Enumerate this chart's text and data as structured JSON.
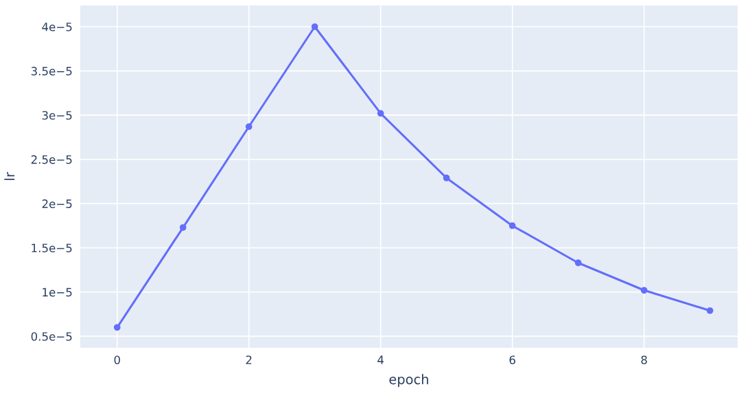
{
  "chart_data": {
    "type": "line",
    "xlabel": "epoch",
    "ylabel": "lr",
    "x": [
      0,
      1,
      2,
      3,
      4,
      5,
      6,
      7,
      8,
      9
    ],
    "series": [
      {
        "color": "#636efa",
        "values": [
          6e-06,
          1.73e-05,
          2.87e-05,
          4e-05,
          3.02e-05,
          2.29e-05,
          1.75e-05,
          1.33e-05,
          1.02e-05,
          7.9e-06
        ]
      }
    ],
    "xlim": [
      -0.56,
      9.42
    ],
    "xticks": [
      0,
      2,
      4,
      6,
      8
    ],
    "ylim": [
      3.7e-06,
      4.24e-05
    ],
    "yticks": [
      {
        "value": 5e-06,
        "label": "0.5e−5"
      },
      {
        "value": 1e-05,
        "label": "1e−5"
      },
      {
        "value": 1.5e-05,
        "label": "1.5e−5"
      },
      {
        "value": 2e-05,
        "label": "2e−5"
      },
      {
        "value": 2.5e-05,
        "label": "2.5e−5"
      },
      {
        "value": 3e-05,
        "label": "3e−5"
      },
      {
        "value": 3.5e-05,
        "label": "3.5e−5"
      },
      {
        "value": 4e-05,
        "label": "4e−5"
      }
    ],
    "grid": true,
    "marker": "circle",
    "line_style": "solid",
    "legend": false
  }
}
